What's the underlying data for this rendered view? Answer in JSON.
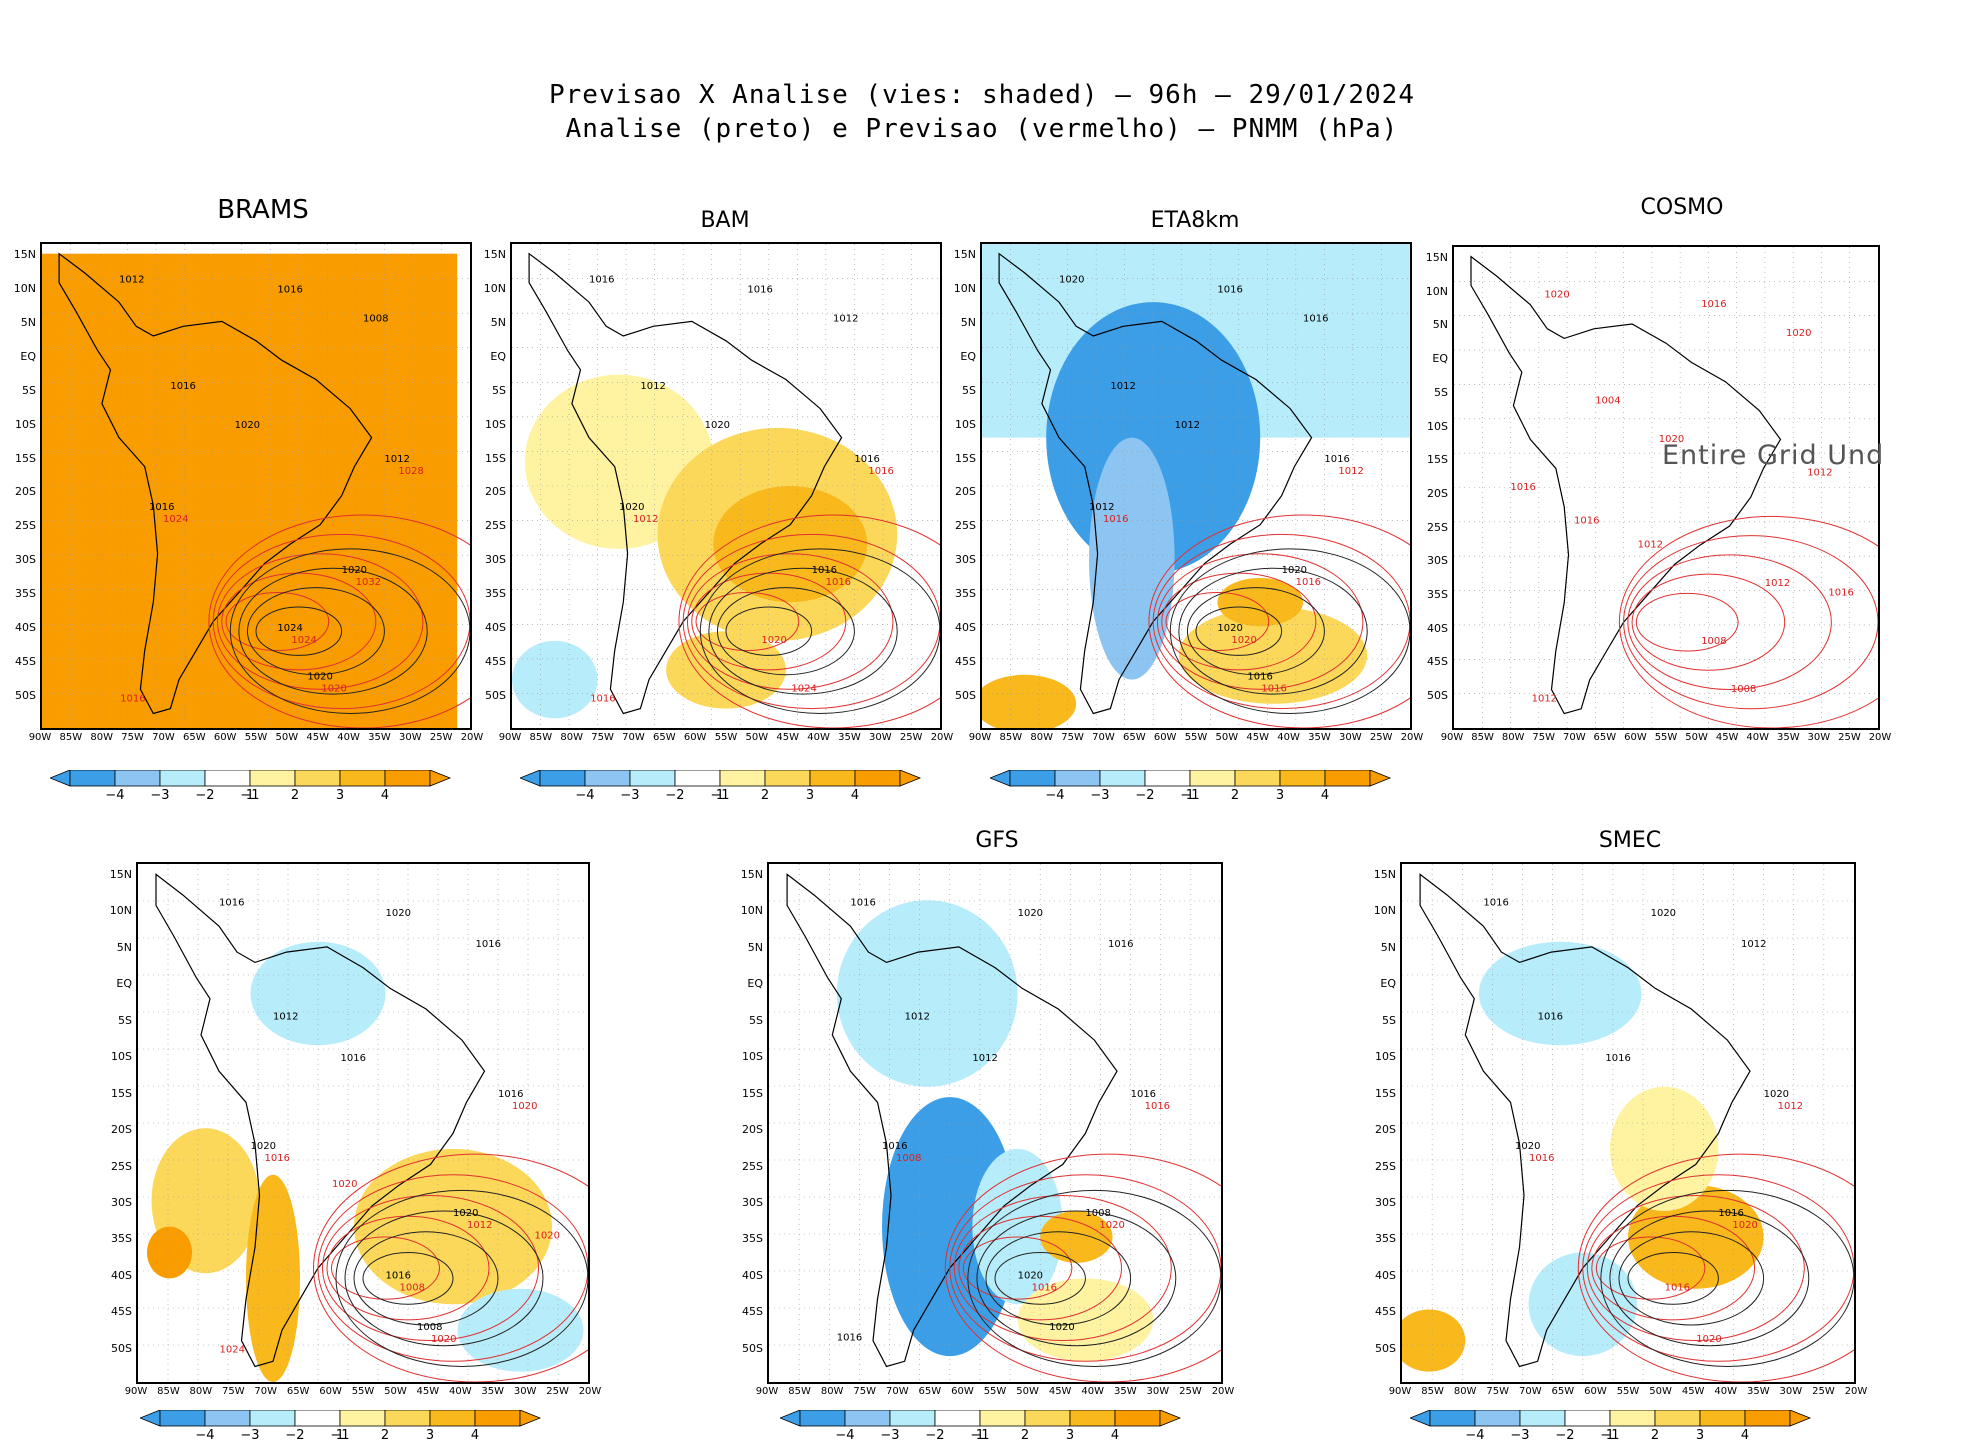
{
  "figure": {
    "title_line1": "Previsao X Analise (vies: shaded) – 96h – 29/01/2024",
    "title_line2": "Analise (preto) e Previsao (vermelho) – PNMM (hPa)"
  },
  "axes": {
    "lat_labels": [
      "15N",
      "10N",
      "5N",
      "EQ",
      "5S",
      "10S",
      "15S",
      "20S",
      "25S",
      "30S",
      "35S",
      "40S",
      "45S",
      "50S"
    ],
    "lon_labels": [
      "90W",
      "85W",
      "80W",
      "75W",
      "70W",
      "65W",
      "60W",
      "55W",
      "50W",
      "45W",
      "40W",
      "35W",
      "30W",
      "25W",
      "20W"
    ]
  },
  "colorbar": {
    "labels": [
      "−4",
      "−3",
      "−2",
      "−1",
      "1",
      "2",
      "3",
      "4"
    ],
    "colors": [
      "#3d9ee8",
      "#8cc4f2",
      "#b7ecfb",
      "#ffffff",
      "#fff2a0",
      "#fcd85a",
      "#f9b81c",
      "#f99c00"
    ]
  },
  "panels": [
    {
      "name": "BRAMS",
      "title": "BRAMS",
      "fill": "orange",
      "contours_black": [
        "1012",
        "1016",
        "1008",
        "1016",
        "1020",
        "1012",
        "1016",
        "1020",
        "1024",
        "1020"
      ],
      "contours_red": [
        "1028",
        "1024",
        "1032",
        "1024",
        "1020",
        "1016"
      ]
    },
    {
      "name": "BAM",
      "title": "BAM",
      "fill": "warm",
      "contours_black": [
        "1016",
        "1016",
        "1012",
        "1012",
        "1020",
        "1016",
        "1020",
        "1016"
      ],
      "contours_red": [
        "1016",
        "1012",
        "1016",
        "1020",
        "1024",
        "1016"
      ]
    },
    {
      "name": "ETA8km",
      "title": "ETA8km",
      "fill": "cold",
      "contours_black": [
        "1020",
        "1016",
        "1016",
        "1012",
        "1012",
        "1016",
        "1012",
        "1020",
        "1020",
        "1016"
      ],
      "contours_red": [
        "1012",
        "1016",
        "1016",
        "1020",
        "1016"
      ]
    },
    {
      "name": "COSMO",
      "title": "COSMO",
      "fill": "empty",
      "overlay": "Entire Grid Und",
      "contours_black": [],
      "contours_red": [
        "1012",
        "1016",
        "1012",
        "1008",
        "1008",
        "1012",
        "1012",
        "1016",
        "1016",
        "1020",
        "1016",
        "1020",
        "1004",
        "1020"
      ]
    },
    {
      "name": "panel5",
      "title": "",
      "fill": "mixed",
      "contours_black": [
        "1016",
        "1020",
        "1016",
        "1012",
        "1016",
        "1016",
        "1020",
        "1020",
        "1016",
        "1008"
      ],
      "contours_red": [
        "1020",
        "1016",
        "1012",
        "1008",
        "1020",
        "1024",
        "1020",
        "1020"
      ]
    },
    {
      "name": "GFS",
      "title": "GFS",
      "fill": "gfs",
      "contours_black": [
        "1016",
        "1020",
        "1016",
        "1012",
        "1012",
        "1016",
        "1016",
        "1008",
        "1020",
        "1020",
        "1016"
      ],
      "contours_red": [
        "1016",
        "1008",
        "1020",
        "1016"
      ]
    },
    {
      "name": "SMEC",
      "title": "SMEC",
      "fill": "smec",
      "contours_black": [
        "1016",
        "1020",
        "1012",
        "1016",
        "1016",
        "1020",
        "1020",
        "1016"
      ],
      "contours_red": [
        "1012",
        "1016",
        "1020",
        "1016",
        "1020"
      ]
    }
  ]
}
